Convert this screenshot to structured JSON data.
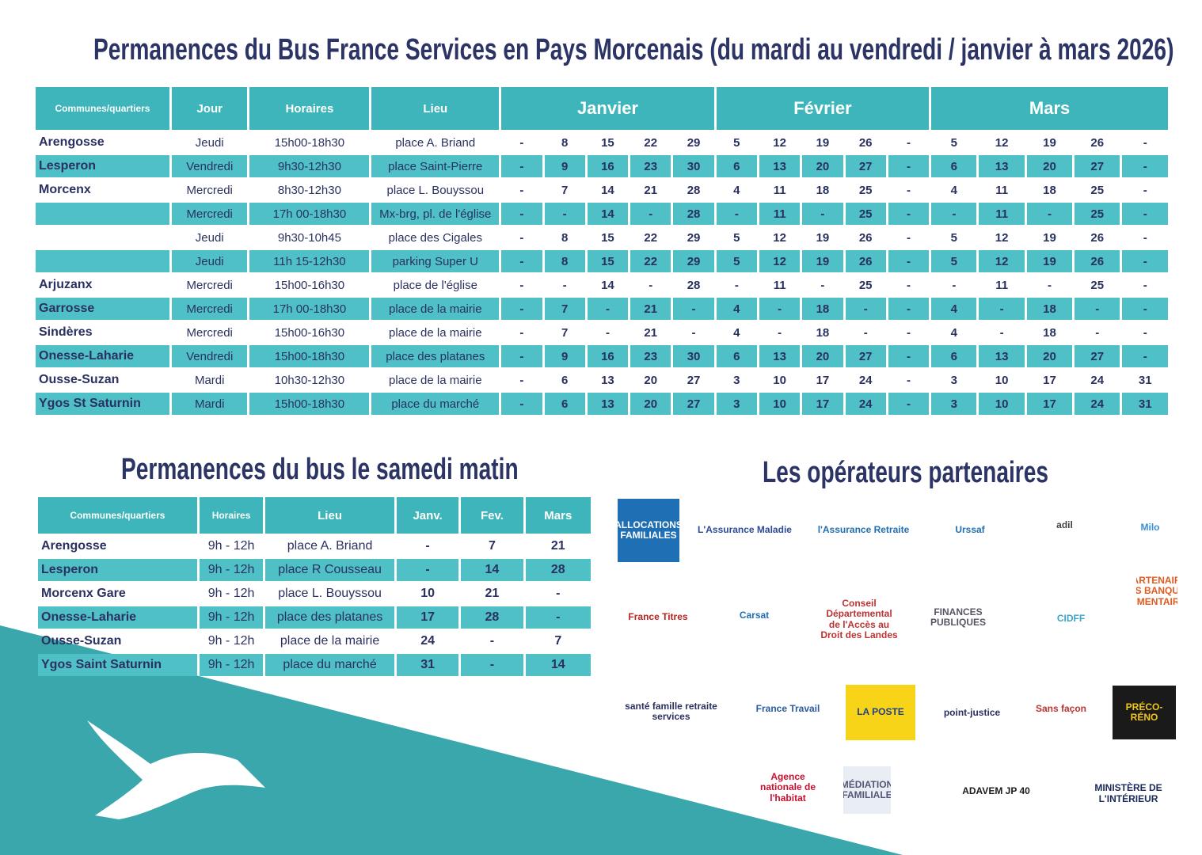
{
  "title": "Permanences du Bus France Services en Pays Morcenais (du mardi au vendredi / janvier à mars 2026)",
  "main_table": {
    "headers": [
      "Communes/quartiers",
      "Jour",
      "Horaires",
      "Lieu"
    ],
    "months": [
      "Janvier",
      "Février",
      "Mars"
    ],
    "rows": [
      [
        "Arengosse",
        "Jeudi",
        "15h00-18h30",
        "place A. Briand",
        "-",
        "8",
        "15",
        "22",
        "29",
        "5",
        "12",
        "19",
        "26",
        "-",
        "5",
        "12",
        "19",
        "26",
        "-"
      ],
      [
        "Lesperon",
        "Vendredi",
        "9h30-12h30",
        "place Saint-Pierre",
        "-",
        "9",
        "16",
        "23",
        "30",
        "6",
        "13",
        "20",
        "27",
        "-",
        "6",
        "13",
        "20",
        "27",
        "-"
      ],
      [
        "Morcenx",
        "Mercredi",
        "8h30-12h30",
        "place L. Bouyssou",
        "-",
        "7",
        "14",
        "21",
        "28",
        "4",
        "11",
        "18",
        "25",
        "-",
        "4",
        "11",
        "18",
        "25",
        "-"
      ],
      [
        null,
        "Mercredi",
        "17h 00-18h30",
        "Mx-brg, pl. de l'église",
        "-",
        "-",
        "14",
        "-",
        "28",
        "-",
        "11",
        "-",
        "25",
        "-",
        "-",
        "11",
        "-",
        "25",
        "-"
      ],
      [
        null,
        "Jeudi",
        "9h30-10h45",
        "place  des Cigales",
        "-",
        "8",
        "15",
        "22",
        "29",
        "5",
        "12",
        "19",
        "26",
        "-",
        "5",
        "12",
        "19",
        "26",
        "-"
      ],
      [
        null,
        "Jeudi",
        "11h 15-12h30",
        "parking Super U",
        "-",
        "8",
        "15",
        "22",
        "29",
        "5",
        "12",
        "19",
        "26",
        "-",
        "5",
        "12",
        "19",
        "26",
        "-"
      ],
      [
        "Arjuzanx",
        "Mercredi",
        "15h00-16h30",
        "place de l'église",
        "-",
        "-",
        "14",
        "-",
        "28",
        "-",
        "11",
        "-",
        "25",
        "-",
        "-",
        "11",
        "-",
        "25",
        "-"
      ],
      [
        "Garrosse",
        "Mercredi",
        "17h 00-18h30",
        "place de la mairie",
        "-",
        "7",
        "-",
        "21",
        "-",
        "4",
        "-",
        "18",
        "-",
        "-",
        "4",
        "-",
        "18",
        "-",
        "-"
      ],
      [
        "Sindères",
        "Mercredi",
        "15h00-16h30",
        "place de la mairie",
        "-",
        "7",
        "-",
        "21",
        "-",
        "4",
        "-",
        "18",
        "-",
        "-",
        "4",
        "-",
        "18",
        "-",
        "-"
      ],
      [
        "Onesse-Laharie",
        "Vendredi",
        "15h00-18h30",
        "place des platanes",
        "-",
        "9",
        "16",
        "23",
        "30",
        "6",
        "13",
        "20",
        "27",
        "-",
        "6",
        "13",
        "20",
        "27",
        "-"
      ],
      [
        "Ousse-Suzan",
        "Mardi",
        "10h30-12h30",
        "place de la mairie",
        "-",
        "6",
        "13",
        "20",
        "27",
        "3",
        "10",
        "17",
        "24",
        "-",
        "3",
        "10",
        "17",
        "24",
        "31"
      ],
      [
        "Ygos St Saturnin",
        "Mardi",
        "15h00-18h30",
        "place du marché",
        "-",
        "6",
        "13",
        "20",
        "27",
        "3",
        "10",
        "17",
        "24",
        "-",
        "3",
        "10",
        "17",
        "24",
        "31"
      ]
    ]
  },
  "saturday": {
    "title": "Permanences du bus le samedi matin",
    "headers": [
      "Communes/quartiers",
      "Horaires",
      "Lieu",
      "Janv.",
      "Fev.",
      "Mars"
    ],
    "rows": [
      [
        "Arengosse",
        "9h - 12h",
        "place A. Briand",
        "-",
        "7",
        "21"
      ],
      [
        "Lesperon",
        "9h - 12h",
        "place R Cousseau",
        "-",
        "14",
        "28"
      ],
      [
        "Morcenx Gare",
        "9h - 12h",
        "place L. Bouyssou",
        "10",
        "21",
        "-"
      ],
      [
        "Onesse-Laharie",
        "9h - 12h",
        "place des platanes",
        "17",
        "28",
        "-"
      ],
      [
        "Ousse-Suzan",
        "9h - 12h",
        "place de la mairie",
        "24",
        "-",
        "7"
      ],
      [
        "Ygos Saint Saturnin",
        "9h - 12h",
        "place du marché",
        "31",
        "-",
        "14"
      ]
    ]
  },
  "partners": {
    "title": "Les opérateurs partenaires",
    "logos": [
      "ALLOCATIONS FAMILIALES",
      "L'Assurance Maladie",
      "l'Assurance Retraite",
      "Urssaf",
      "adil",
      "Milo",
      "France Titres",
      "Carsat",
      "Conseil Départemental de l'Accès au Droit des Landes",
      "FINANCES PUBLIQUES",
      "CIDFF",
      "PARTENAIRE DES BANQUES ALIMENTAIRES",
      "santé famille retraite services",
      "France Travail",
      "LA POSTE",
      "point-justice",
      "Sans façon",
      "PRÉCO-RÉNO",
      "Agence nationale de l'habitat",
      "MÉDIATION FAMILIALE",
      "ADAVEM JP 40",
      "MINISTÈRE DE L'INTÉRIEUR"
    ]
  }
}
